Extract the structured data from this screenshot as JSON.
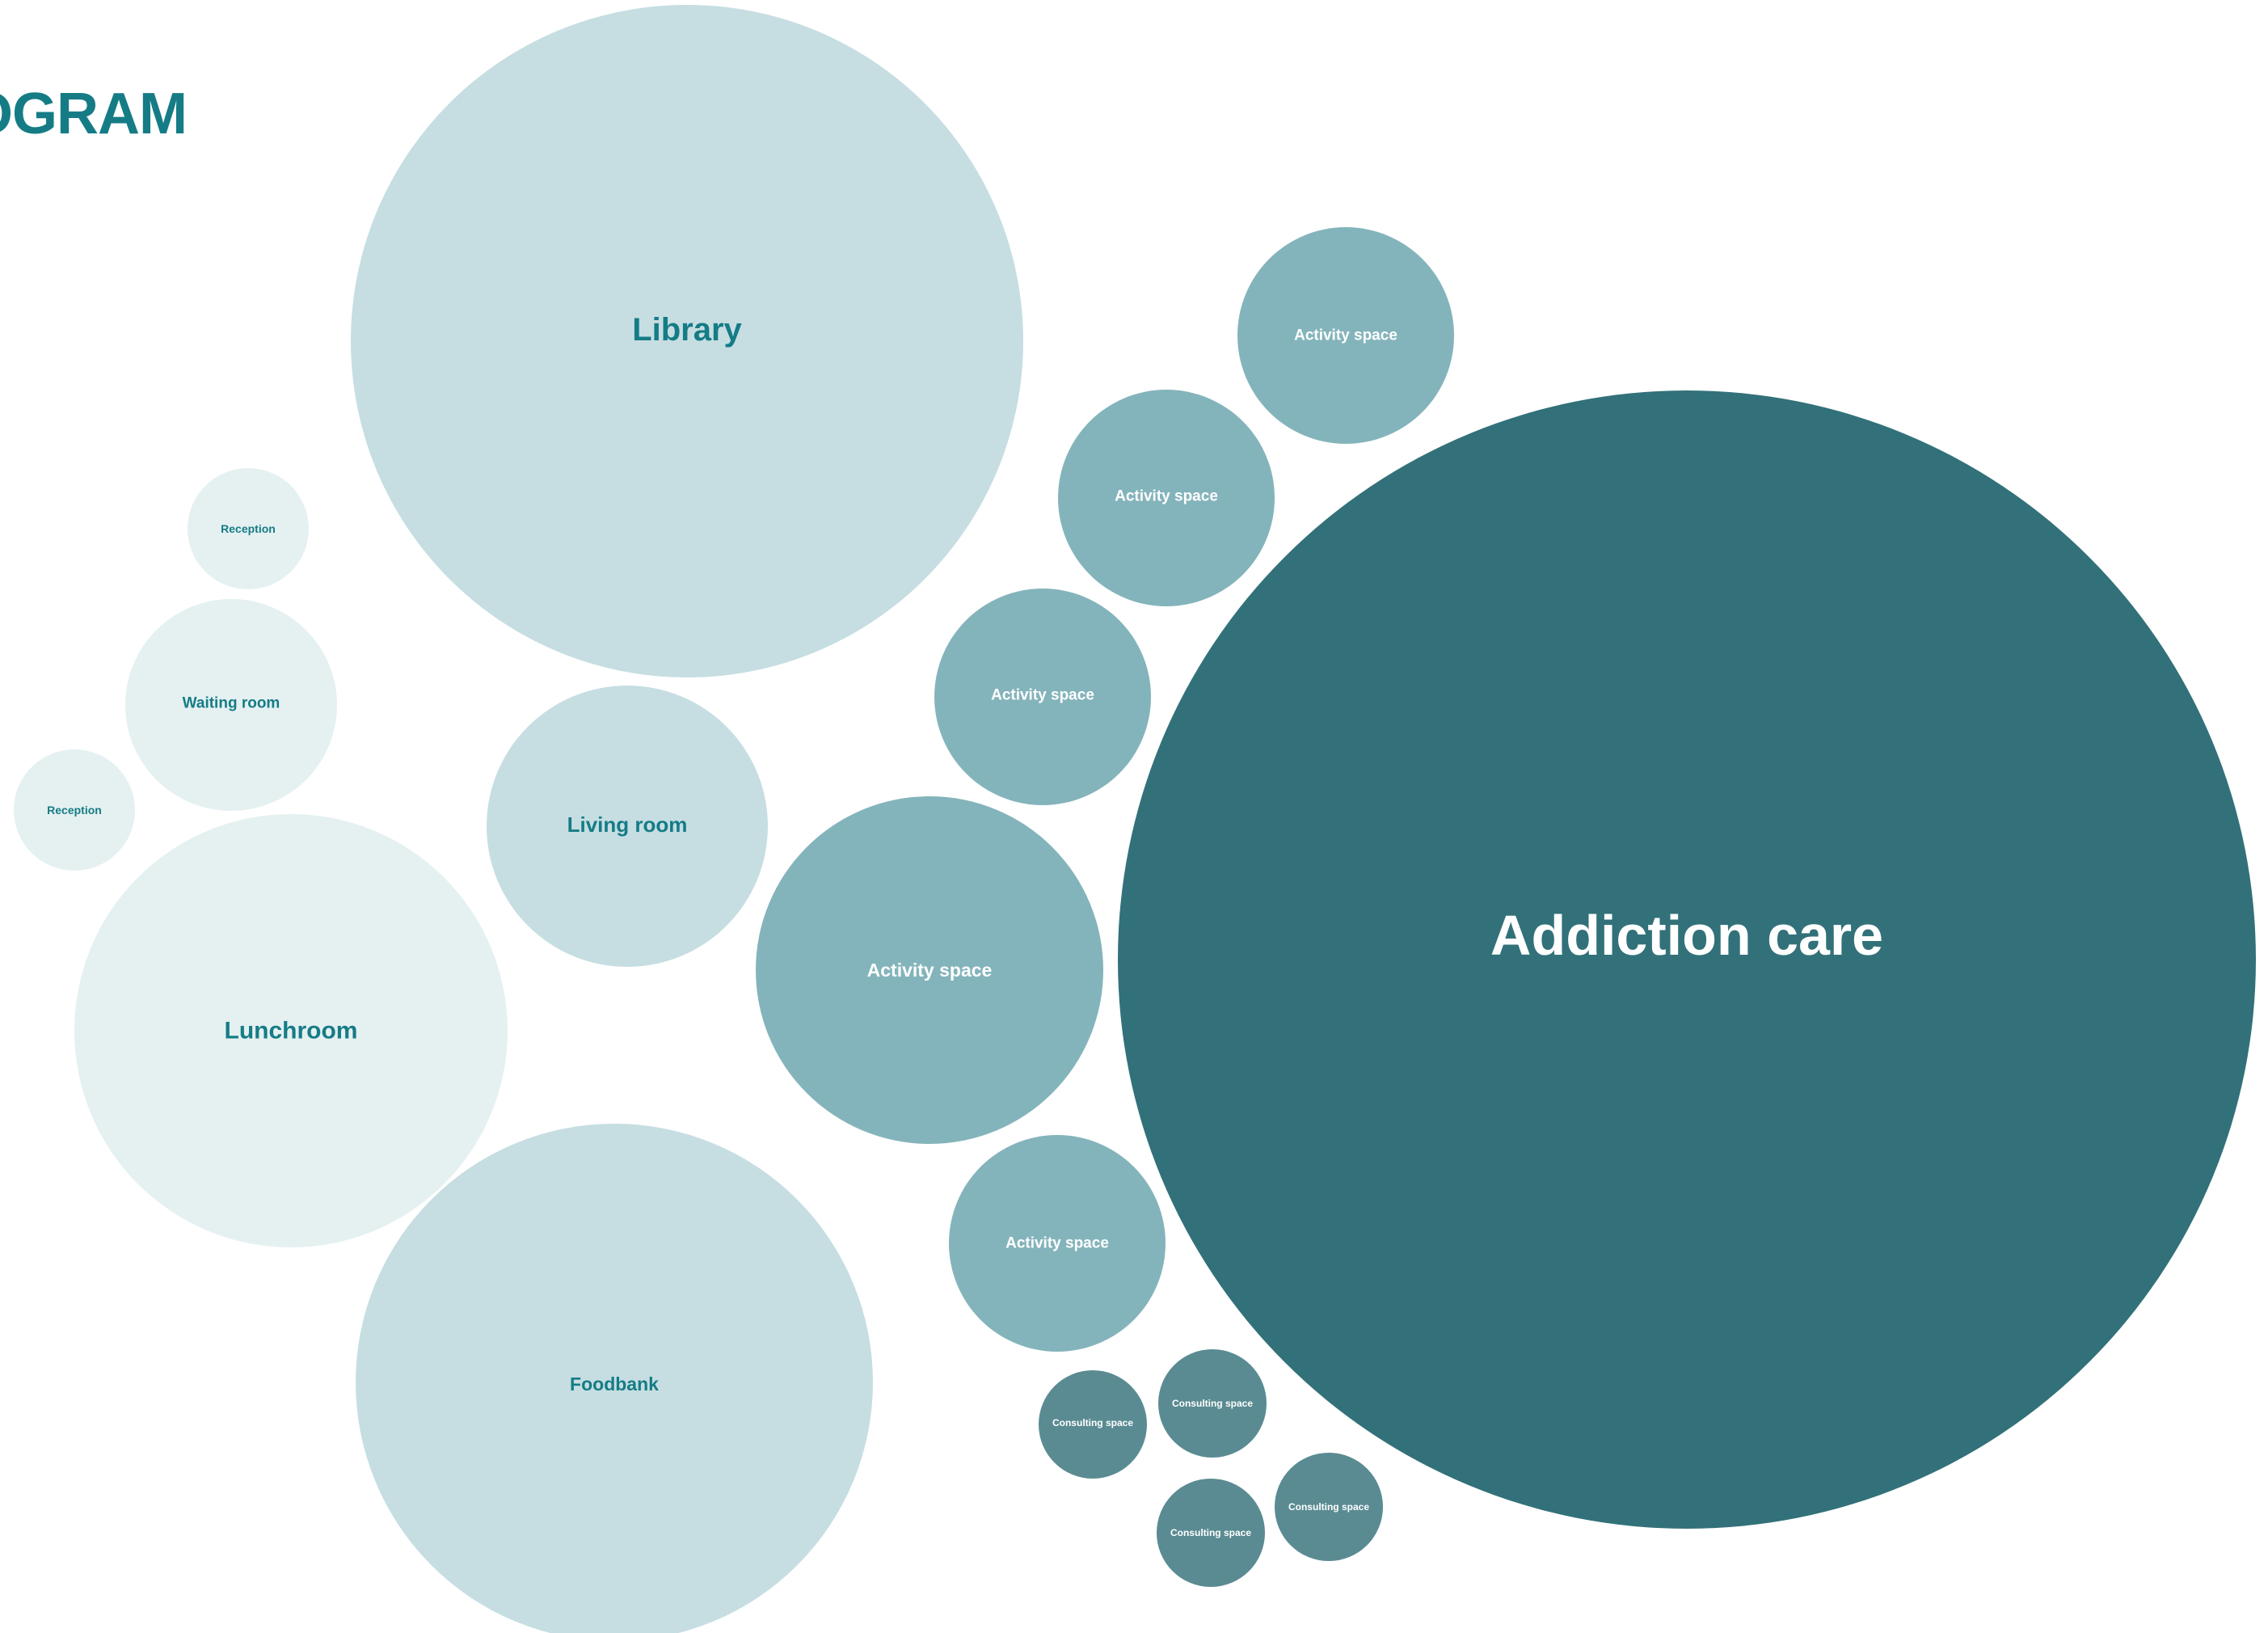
{
  "title": "OGRAM",
  "colors": {
    "title": "#157c86",
    "dark_teal": "#327179",
    "mid_teal": "#84b4bb",
    "consulting_teal": "#5a8b92",
    "light_teal": "#c6dee2",
    "pale_teal": "#e5f0f1",
    "dark_label": "#157c86",
    "light_label": "#ffffff"
  },
  "spaces": [
    {
      "id": "library",
      "label": "Library",
      "tone": "light"
    },
    {
      "id": "activity-1",
      "label": "Activity space",
      "tone": "mid"
    },
    {
      "id": "activity-2",
      "label": "Activity space",
      "tone": "mid"
    },
    {
      "id": "activity-3",
      "label": "Activity space",
      "tone": "mid"
    },
    {
      "id": "activity-4",
      "label": "Activity space",
      "tone": "mid"
    },
    {
      "id": "activity-5",
      "label": "Activity space",
      "tone": "mid"
    },
    {
      "id": "addiction-care",
      "label": "Addiction care",
      "tone": "dark"
    },
    {
      "id": "reception-1",
      "label": "Reception",
      "tone": "pale"
    },
    {
      "id": "reception-2",
      "label": "Reception",
      "tone": "pale"
    },
    {
      "id": "waiting-room",
      "label": "Waiting room",
      "tone": "pale"
    },
    {
      "id": "living-room",
      "label": "Living room",
      "tone": "light"
    },
    {
      "id": "lunchroom",
      "label": "Lunchroom",
      "tone": "pale"
    },
    {
      "id": "foodbank",
      "label": "Foodbank",
      "tone": "light"
    },
    {
      "id": "consulting-1",
      "label": "Consulting space",
      "tone": "consulting"
    },
    {
      "id": "consulting-2",
      "label": "Consulting space",
      "tone": "consulting"
    },
    {
      "id": "consulting-3",
      "label": "Consulting space",
      "tone": "consulting"
    },
    {
      "id": "consulting-4",
      "label": "Consulting space",
      "tone": "consulting"
    }
  ]
}
